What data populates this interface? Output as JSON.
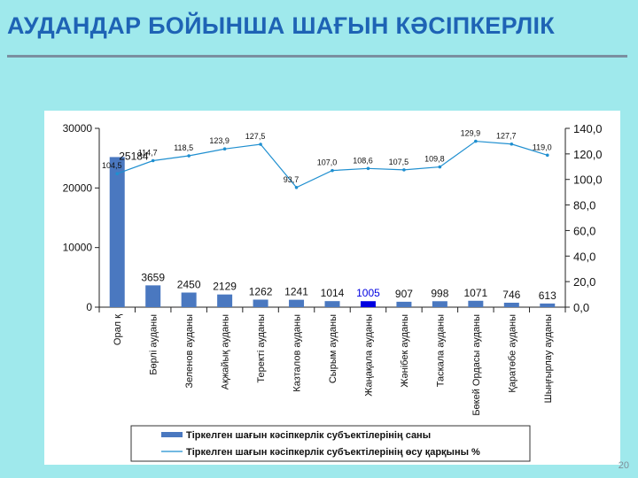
{
  "page": {
    "title": "АУДАНДАР БОЙЫНША ШАҒЫН КӘСІПКЕРЛІК",
    "page_number": "20"
  },
  "colors": {
    "title": "#1e63b5",
    "bar": "#4a78c0",
    "bar_highlight": "#0000e0",
    "line": "#1f8fd0",
    "background": "#9fe9ec"
  },
  "chart_data": {
    "type": "bar",
    "categories": [
      "Орал қ",
      "Бөрлі ауданы",
      "Зеленов ауданы",
      "Ақжайық ауданы",
      "Теректі ауданы",
      "Казталов ауданы",
      "Сырым ауданы",
      "Жаңақала ауданы",
      "Жәнібек ауданы",
      "Таскала ауданы",
      "Бөкей Ордасы ауданы",
      "Қаратөбе ауданы",
      "Шыңғырлау ауданы"
    ],
    "series": [
      {
        "name": "Тіркелген шағын кәсіпкерлік субъектілерінің саны",
        "type": "bar",
        "axis": "left",
        "values": [
          25184,
          3659,
          2450,
          2129,
          1262,
          1241,
          1014,
          1005,
          907,
          998,
          1071,
          746,
          613
        ],
        "labels": [
          "25184",
          "3659",
          "2450",
          "2129",
          "1262",
          "1241",
          "1014",
          "1005",
          "907",
          "998",
          "1071",
          "746",
          "613"
        ],
        "highlight_index": 7
      },
      {
        "name": "Тіркелген шағын кәсіпкерлік субъектілерінің өсу қарқыны %",
        "type": "line",
        "axis": "right",
        "values": [
          104.5,
          114.7,
          118.5,
          123.9,
          127.5,
          93.7,
          107.0,
          108.6,
          107.5,
          109.8,
          129.9,
          127.7,
          119.0
        ],
        "labels": [
          "104,5",
          "114,7",
          "118,5",
          "123,9",
          "127,5",
          "93,7",
          "107,0",
          "108,6",
          "107,5",
          "109,8",
          "129,9",
          "127,7",
          "119,0"
        ]
      }
    ],
    "y_left": {
      "lim": [
        0,
        30000
      ],
      "ticks": [
        0,
        10000,
        20000,
        30000
      ],
      "tick_labels": [
        "0",
        "10000",
        "20000",
        "30000"
      ]
    },
    "y_right": {
      "lim": [
        0,
        140
      ],
      "ticks": [
        0,
        20,
        40,
        60,
        80,
        100,
        120,
        140
      ],
      "tick_labels": [
        "0,0",
        "20,0",
        "40,0",
        "60,0",
        "80,0",
        "100,0",
        "120,0",
        "140,0"
      ]
    },
    "grid": false,
    "legend_position": "bottom"
  }
}
